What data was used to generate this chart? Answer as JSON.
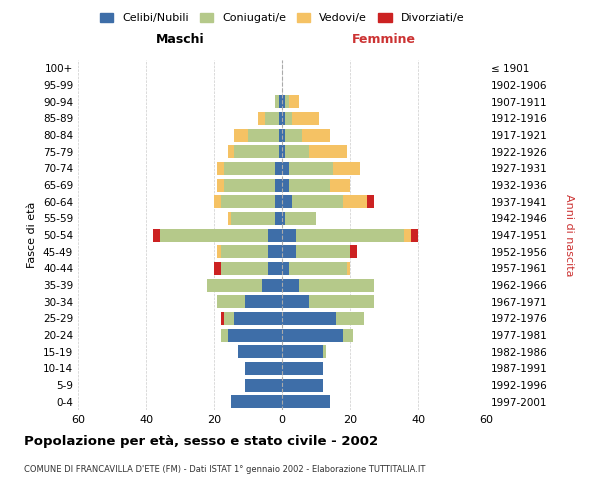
{
  "age_groups": [
    "0-4",
    "5-9",
    "10-14",
    "15-19",
    "20-24",
    "25-29",
    "30-34",
    "35-39",
    "40-44",
    "45-49",
    "50-54",
    "55-59",
    "60-64",
    "65-69",
    "70-74",
    "75-79",
    "80-84",
    "85-89",
    "90-94",
    "95-99",
    "100+"
  ],
  "birth_years": [
    "1997-2001",
    "1992-1996",
    "1987-1991",
    "1982-1986",
    "1977-1981",
    "1972-1976",
    "1967-1971",
    "1962-1966",
    "1957-1961",
    "1952-1956",
    "1947-1951",
    "1942-1946",
    "1937-1941",
    "1932-1936",
    "1927-1931",
    "1922-1926",
    "1917-1921",
    "1912-1916",
    "1907-1911",
    "1902-1906",
    "≤ 1901"
  ],
  "male": {
    "celibe": [
      15,
      11,
      11,
      13,
      16,
      14,
      11,
      6,
      4,
      4,
      4,
      2,
      2,
      2,
      2,
      1,
      1,
      1,
      1,
      0,
      0
    ],
    "coniugato": [
      0,
      0,
      0,
      0,
      2,
      3,
      8,
      16,
      14,
      14,
      32,
      13,
      16,
      15,
      15,
      13,
      9,
      4,
      1,
      0,
      0
    ],
    "vedovo": [
      0,
      0,
      0,
      0,
      0,
      0,
      0,
      0,
      0,
      1,
      0,
      1,
      2,
      2,
      2,
      2,
      4,
      2,
      0,
      0,
      0
    ],
    "divorziato": [
      0,
      0,
      0,
      0,
      0,
      1,
      0,
      0,
      2,
      0,
      2,
      0,
      0,
      0,
      0,
      0,
      0,
      0,
      0,
      0,
      0
    ]
  },
  "female": {
    "nubile": [
      14,
      12,
      12,
      12,
      18,
      16,
      8,
      5,
      2,
      4,
      4,
      1,
      3,
      2,
      2,
      1,
      1,
      1,
      1,
      0,
      0
    ],
    "coniugata": [
      0,
      0,
      0,
      1,
      3,
      8,
      19,
      22,
      17,
      16,
      32,
      9,
      15,
      12,
      13,
      7,
      5,
      2,
      1,
      0,
      0
    ],
    "vedova": [
      0,
      0,
      0,
      0,
      0,
      0,
      0,
      0,
      1,
      0,
      2,
      0,
      7,
      6,
      8,
      11,
      8,
      8,
      3,
      0,
      0
    ],
    "divorziata": [
      0,
      0,
      0,
      0,
      0,
      0,
      0,
      0,
      0,
      2,
      2,
      0,
      2,
      0,
      0,
      0,
      0,
      0,
      0,
      0,
      0
    ]
  },
  "colors": {
    "celibe": "#3e6ea8",
    "coniugato": "#b5c98a",
    "vedovo": "#f5c264",
    "divorziato": "#cc2222"
  },
  "legend_labels": [
    "Celibi/Nubili",
    "Coniugati/e",
    "Vedovi/e",
    "Divorziati/e"
  ],
  "title": "Popolazione per età, sesso e stato civile - 2002",
  "subtitle": "COMUNE DI FRANCAVILLA D'ETE (FM) - Dati ISTAT 1° gennaio 2002 - Elaborazione TUTTITALIA.IT",
  "ylabel_left": "Fasce di età",
  "ylabel_right": "Anni di nascita",
  "xlabel_left": "Maschi",
  "xlabel_right": "Femmine",
  "xlim": [
    -60,
    60
  ],
  "xticks": [
    -60,
    -40,
    -20,
    0,
    20,
    40,
    60
  ],
  "xticklabels": [
    "60",
    "40",
    "20",
    "0",
    "20",
    "40",
    "60"
  ],
  "bg_color": "#ffffff",
  "grid_color": "#cccccc"
}
